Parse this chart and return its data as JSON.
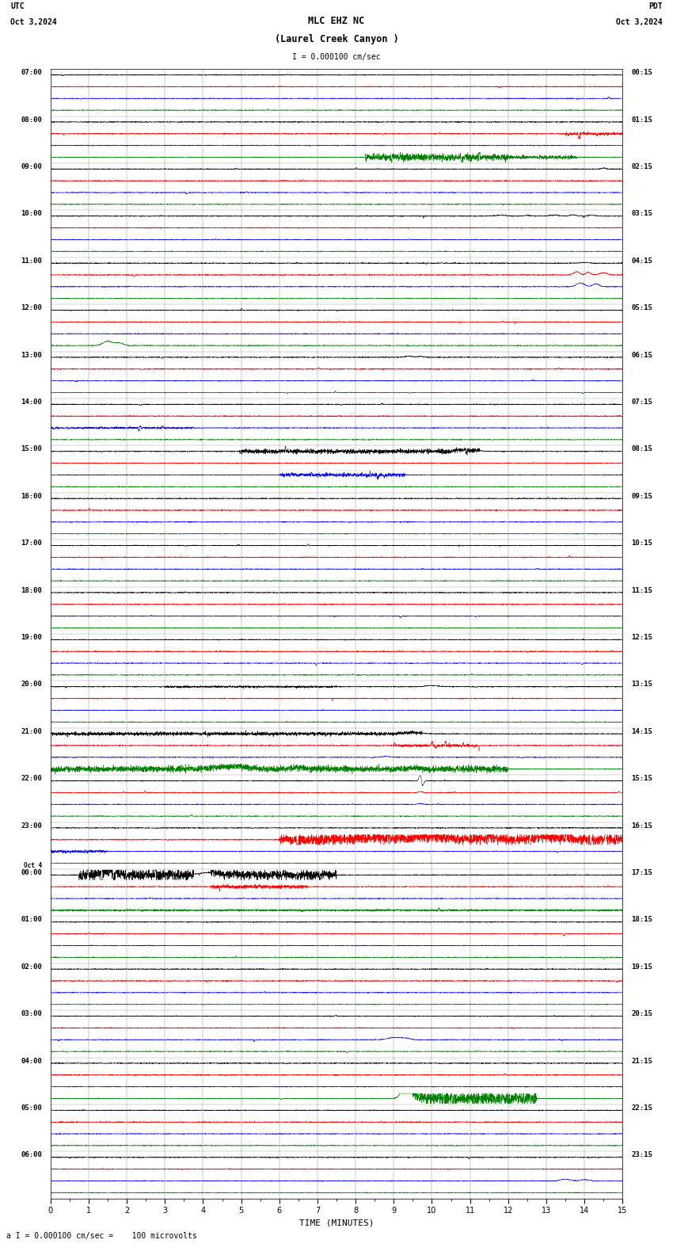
{
  "title_line1": "MLC EHZ NC",
  "title_line2": "(Laurel Creek Canyon )",
  "scale_label": "I = 0.000100 cm/sec",
  "utc_label": "UTC",
  "pdt_label": "PDT",
  "date_left": "Oct 3,2024",
  "date_right": "Oct 3,2024",
  "bottom_label": "a I = 0.000100 cm/sec =    100 microvolts",
  "xlabel": "TIME (MINUTES)",
  "left_times": [
    "07:00",
    "08:00",
    "09:00",
    "10:00",
    "11:00",
    "12:00",
    "13:00",
    "14:00",
    "15:00",
    "16:00",
    "17:00",
    "18:00",
    "19:00",
    "20:00",
    "21:00",
    "22:00",
    "23:00",
    "Oct 4\n00:00",
    "01:00",
    "02:00",
    "03:00",
    "04:00",
    "05:00",
    "06:00"
  ],
  "right_times": [
    "00:15",
    "01:15",
    "02:15",
    "03:15",
    "04:15",
    "05:15",
    "06:15",
    "07:15",
    "08:15",
    "09:15",
    "10:15",
    "11:15",
    "12:15",
    "13:15",
    "14:15",
    "15:15",
    "16:15",
    "17:15",
    "18:15",
    "19:15",
    "20:15",
    "21:15",
    "22:15",
    "23:15"
  ],
  "n_rows": 24,
  "n_traces_per_row": 4,
  "colors": [
    "black",
    "red",
    "blue",
    "green"
  ],
  "bg_color": "white",
  "line_width": 0.35,
  "xlim": [
    0,
    15
  ],
  "xticks": [
    0,
    1,
    2,
    3,
    4,
    5,
    6,
    7,
    8,
    9,
    10,
    11,
    12,
    13,
    14,
    15
  ],
  "noise_amplitude": 0.018,
  "seed": 12345
}
